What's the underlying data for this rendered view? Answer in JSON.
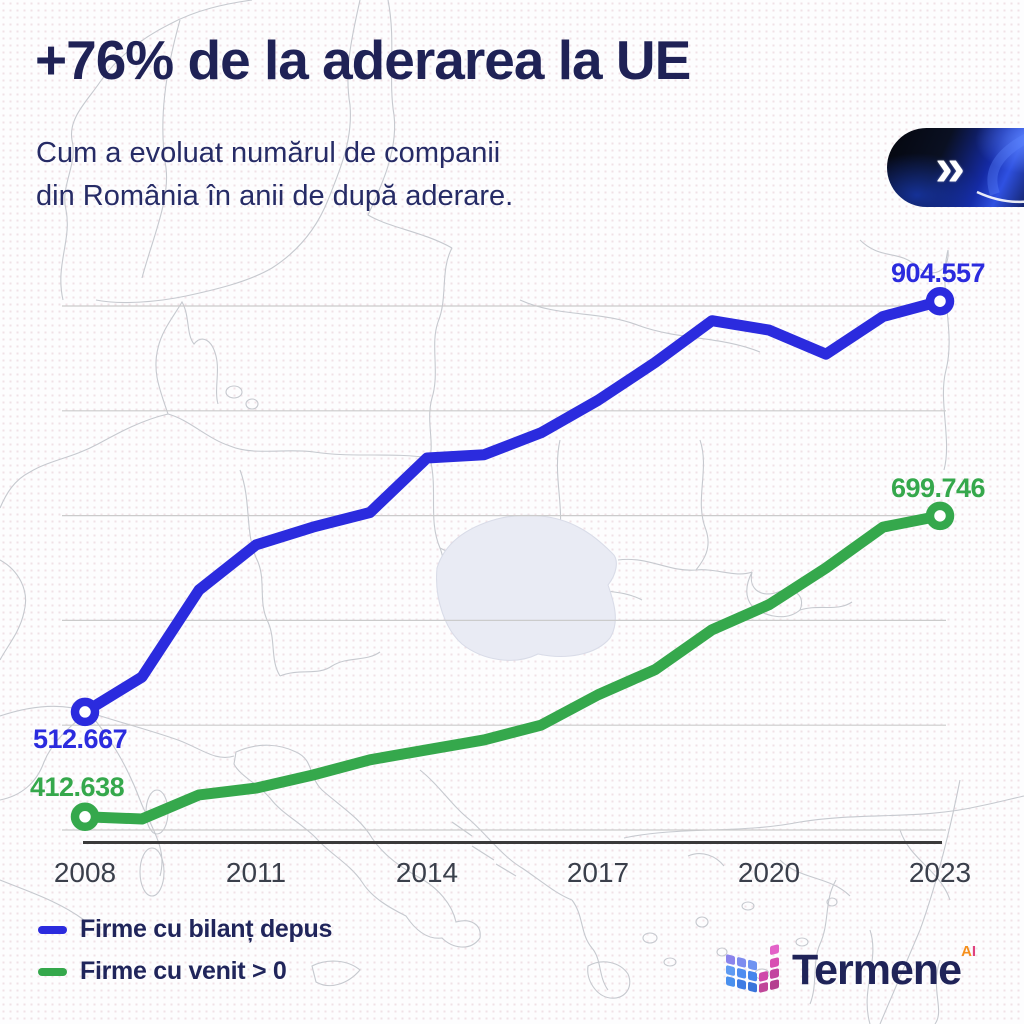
{
  "header": {
    "title": "+76% de la aderarea la UE",
    "subtitle_line1": "Cum a evoluat numărul de companii",
    "subtitle_line2": "din România în anii de după aderare.",
    "badge_symbol": "»"
  },
  "chart_data": {
    "type": "line",
    "x": [
      2008,
      2009,
      2010,
      2011,
      2012,
      2013,
      2014,
      2015,
      2016,
      2017,
      2018,
      2019,
      2020,
      2021,
      2022,
      2023
    ],
    "x_ticks": [
      "2008",
      "2011",
      "2014",
      "2017",
      "2020",
      "2023"
    ],
    "y_axis": {
      "min": 400000,
      "max": 900000,
      "gridline_step": 100000,
      "tick_labels_visible": false
    },
    "grid": "horizontal",
    "legend_position": "bottom-left",
    "series": [
      {
        "name": "Firme cu bilanț depus",
        "color": "#2b2bde",
        "values": [
          512667,
          546000,
          629000,
          672000,
          689000,
          703000,
          755000,
          758000,
          779000,
          810000,
          846000,
          886000,
          877000,
          854000,
          890000,
          904557
        ],
        "first_label": "512.667",
        "last_label": "904.557"
      },
      {
        "name": "Firme cu venit > 0",
        "color": "#35a84c",
        "values": [
          412638,
          410500,
          433500,
          440000,
          452500,
          467000,
          476500,
          486000,
          500000,
          529000,
          553000,
          591000,
          615000,
          650000,
          689000,
          699746
        ],
        "first_label": "412.638",
        "last_label": "699.746"
      }
    ]
  },
  "legend": {
    "items": [
      {
        "label": "Firme cu bilanț depus",
        "color": "#2b2bde"
      },
      {
        "label": "Firme cu venit > 0",
        "color": "#35a84c"
      }
    ]
  },
  "footer_logo": {
    "text": "Termene",
    "superscript_a": "A",
    "superscript_i": "I"
  },
  "colors": {
    "title_navy": "#1f2256",
    "subtitle_navy": "#262b66",
    "axis_line": "#3a3a3a",
    "gridline": "#cbcbcb",
    "tick_label": "#3a3f4b",
    "map_stroke": "#c6c9cf",
    "romania_fill": "#e9ebf4",
    "accent_blue": "#2b2bde",
    "accent_green": "#35a84c"
  }
}
